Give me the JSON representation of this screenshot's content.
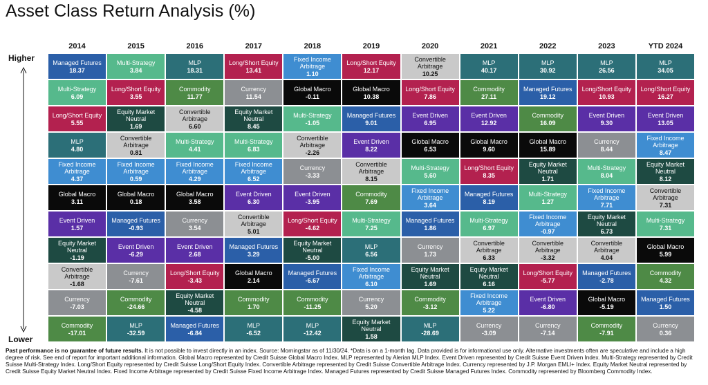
{
  "title": "Asset Class Return Analysis (%)",
  "higher_label": "Higher",
  "lower_label": "Lower",
  "footnote_bold": "Past performance is no guarantee of future results.",
  "footnote_text": " It is not possible to invest directly in an index. Source: Morningstar as of 11/30/24. *Data is on a 1-month lag. Data provided is for informational use only. Alternative investments often are speculative and include a high degree of risk. See end of report for important additional information. Global Macro represented by Credit Suisse Global Macro Index. MLP represented by Alerian MLP Index. Event Driven represented by Credit Suisse Event Driven Index. Multi-Strategy represented by Credit Suisse Multi-Strategy Index. Long/Short Equity represented by Credit Suisse Long/Short Equity Index. Convertible Arbitrage represented by Credit Suisse Convertible Arbitrage Index. Currency represented by J.P. Morgan EMLI+ Index. Equity Market Neutral represented by Credit Suisse Equity Market Neutral Index. Fixed Income Arbitrage represented by Credit Suisse Fixed Income Arbitrage Index. Managed Futures represented by Credit Suisse Managed Futures Index. Commodity represented by Bloomberg Commodity Index.",
  "colors": {
    "Managed Futures": "#2b5fa8",
    "Multi-Strategy": "#56b98c",
    "Long/Short Equity": "#b3214f",
    "MLP": "#2c6f78",
    "Fixed Income Arbitrage": "#3f8dd1",
    "Global Macro": "#0a0a0a",
    "Event Driven": "#5a2fa6",
    "Equity Market Neutral": "#1e4a42",
    "Convertible Arbitrage": "#c9c9c9",
    "Currency": "#8c8f93",
    "Commodity": "#4e8a46"
  },
  "chart_data": {
    "type": "table",
    "title": "Asset Class Return Analysis (%)",
    "columns": [
      "2014",
      "2015",
      "2016",
      "2017",
      "2018",
      "2019",
      "2020",
      "2021",
      "2022",
      "2023",
      "YTD 2024"
    ],
    "rows": [
      [
        {
          "name": "Managed Futures",
          "value": "18.37"
        },
        {
          "name": "Multi-Strategy",
          "value": "3.84"
        },
        {
          "name": "MLP",
          "value": "18.31"
        },
        {
          "name": "Long/Short Equity",
          "value": "13.41"
        },
        {
          "name": "Fixed Income Arbitrage",
          "value": "1.10"
        },
        {
          "name": "Long/Short Equity",
          "value": "12.17"
        },
        {
          "name": "Convertible Arbitrage",
          "value": "10.25"
        },
        {
          "name": "MLP",
          "value": "40.17"
        },
        {
          "name": "MLP",
          "value": "30.92"
        },
        {
          "name": "MLP",
          "value": "26.56"
        },
        {
          "name": "MLP",
          "value": "34.05"
        }
      ],
      [
        {
          "name": "Multi-Strategy",
          "value": "6.09"
        },
        {
          "name": "Long/Short Equity",
          "value": "3.55"
        },
        {
          "name": "Commodity",
          "value": "11.77"
        },
        {
          "name": "Currency",
          "value": "11.54"
        },
        {
          "name": "Global Macro",
          "value": "-0.11"
        },
        {
          "name": "Global Macro",
          "value": "10.38"
        },
        {
          "name": "Long/Short Equity",
          "value": "7.86"
        },
        {
          "name": "Commodity",
          "value": "27.11"
        },
        {
          "name": "Managed Futures",
          "value": "19.12"
        },
        {
          "name": "Long/Short Equity",
          "value": "10.93"
        },
        {
          "name": "Long/Short Equity",
          "value": "16.27"
        }
      ],
      [
        {
          "name": "Long/Short Equity",
          "value": "5.55"
        },
        {
          "name": "Equity Market Neutral",
          "value": "1.69"
        },
        {
          "name": "Convertible Arbitrage",
          "value": "6.60"
        },
        {
          "name": "Equity Market Neutral",
          "value": "8.45"
        },
        {
          "name": "Multi-Strategy",
          "value": "-1.05"
        },
        {
          "name": "Managed Futures",
          "value": "9.01"
        },
        {
          "name": "Event Driven",
          "value": "6.95"
        },
        {
          "name": "Event Driven",
          "value": "12.92"
        },
        {
          "name": "Commodity",
          "value": "16.09"
        },
        {
          "name": "Event Driven",
          "value": "9.30"
        },
        {
          "name": "Event Driven",
          "value": "13.05"
        }
      ],
      [
        {
          "name": "MLP",
          "value": "4.80"
        },
        {
          "name": "Convertible Arbitrage",
          "value": "0.81"
        },
        {
          "name": "Multi-Strategy",
          "value": "4.41"
        },
        {
          "name": "Multi-Strategy",
          "value": "6.83"
        },
        {
          "name": "Convertible Arbitrage",
          "value": "-2.26"
        },
        {
          "name": "Event Driven",
          "value": "8.22"
        },
        {
          "name": "Global Macro",
          "value": "6.53"
        },
        {
          "name": "Global Macro",
          "value": "9.60"
        },
        {
          "name": "Global Macro",
          "value": "15.89"
        },
        {
          "name": "Currency",
          "value": "8.44"
        },
        {
          "name": "Fixed Income Arbitrage",
          "value": "8.47"
        }
      ],
      [
        {
          "name": "Fixed Income Arbitrage",
          "value": "4.37"
        },
        {
          "name": "Fixed Income Arbitrage",
          "value": "0.59"
        },
        {
          "name": "Fixed Income Arbitrage",
          "value": "4.29"
        },
        {
          "name": "Fixed Income Arbitrage",
          "value": "6.52"
        },
        {
          "name": "Currency",
          "value": "-3.33"
        },
        {
          "name": "Convertible Arbitrage",
          "value": "8.15"
        },
        {
          "name": "Multi-Strategy",
          "value": "5.60"
        },
        {
          "name": "Long/Short Equity",
          "value": "8.35"
        },
        {
          "name": "Equity Market Neutral",
          "value": "1.71"
        },
        {
          "name": "Multi-Strategy",
          "value": "8.04"
        },
        {
          "name": "Equity Market Neutral",
          "value": "8.12"
        }
      ],
      [
        {
          "name": "Global Macro",
          "value": "3.11"
        },
        {
          "name": "Global Macro",
          "value": "0.18"
        },
        {
          "name": "Global Macro",
          "value": "3.58"
        },
        {
          "name": "Event Driven",
          "value": "6.30"
        },
        {
          "name": "Event Driven",
          "value": "-3.95"
        },
        {
          "name": "Commodity",
          "value": "7.69"
        },
        {
          "name": "Fixed Income Arbitrage",
          "value": "3.64"
        },
        {
          "name": "Managed Futures",
          "value": "8.19"
        },
        {
          "name": "Multi-Strategy",
          "value": "1.27"
        },
        {
          "name": "Fixed Income Arbitrage",
          "value": "7.71"
        },
        {
          "name": "Convertible Arbitrage",
          "value": "7.31"
        }
      ],
      [
        {
          "name": "Event Driven",
          "value": "1.57"
        },
        {
          "name": "Managed Futures",
          "value": "-0.93"
        },
        {
          "name": "Currency",
          "value": "3.54"
        },
        {
          "name": "Convertible Arbitrage",
          "value": "5.01"
        },
        {
          "name": "Long/Short Equity",
          "value": "-4.62"
        },
        {
          "name": "Multi-Strategy",
          "value": "7.25"
        },
        {
          "name": "Managed Futures",
          "value": "1.86"
        },
        {
          "name": "Multi-Strategy",
          "value": "6.97"
        },
        {
          "name": "Fixed Income Arbitrage",
          "value": "-0.97"
        },
        {
          "name": "Equity Market Neutral",
          "value": "6.73"
        },
        {
          "name": "Multi-Strategy",
          "value": "7.31"
        }
      ],
      [
        {
          "name": "Equity Market Neutral",
          "value": "-1.19"
        },
        {
          "name": "Event Driven",
          "value": "-6.29"
        },
        {
          "name": "Event Driven",
          "value": "2.68"
        },
        {
          "name": "Managed Futures",
          "value": "3.29"
        },
        {
          "name": "Equity Market Neutral",
          "value": "-5.00"
        },
        {
          "name": "MLP",
          "value": "6.56"
        },
        {
          "name": "Currency",
          "value": "1.73"
        },
        {
          "name": "Convertible Arbitrage",
          "value": "6.33"
        },
        {
          "name": "Convertible Arbitrage",
          "value": "-3.32"
        },
        {
          "name": "Convertible Arbitrage",
          "value": "4.04"
        },
        {
          "name": "Global Macro",
          "value": "5.99"
        }
      ],
      [
        {
          "name": "Convertible Arbitrage",
          "value": "-1.68"
        },
        {
          "name": "Currency",
          "value": "-7.61"
        },
        {
          "name": "Long/Short Equity",
          "value": "-3.43"
        },
        {
          "name": "Global Macro",
          "value": "2.14"
        },
        {
          "name": "Managed Futures",
          "value": "-6.67"
        },
        {
          "name": "Fixed Income Arbitrage",
          "value": "6.10"
        },
        {
          "name": "Equity Market Neutral",
          "value": "1.69"
        },
        {
          "name": "Equity Market Neutral",
          "value": "6.16"
        },
        {
          "name": "Long/Short Equity",
          "value": "-5.77"
        },
        {
          "name": "Managed Futures",
          "value": "-2.78"
        },
        {
          "name": "Commodity",
          "value": "4.32"
        }
      ],
      [
        {
          "name": "Currency",
          "value": "-7.03"
        },
        {
          "name": "Commodity",
          "value": "-24.66"
        },
        {
          "name": "Equity Market Neutral",
          "value": "-4.58"
        },
        {
          "name": "Commodity",
          "value": "1.70"
        },
        {
          "name": "Commodity",
          "value": "-11.25"
        },
        {
          "name": "Currency",
          "value": "5.20"
        },
        {
          "name": "Commodity",
          "value": "-3.12"
        },
        {
          "name": "Fixed Income Arbitrage",
          "value": "5.22"
        },
        {
          "name": "Event Driven",
          "value": "-6.80"
        },
        {
          "name": "Global Macro",
          "value": "-5.19"
        },
        {
          "name": "Managed Futures",
          "value": "1.50"
        }
      ],
      [
        {
          "name": "Commodity",
          "value": "-17.01"
        },
        {
          "name": "MLP",
          "value": "-32.59"
        },
        {
          "name": "Managed Futures",
          "value": "-6.84"
        },
        {
          "name": "MLP",
          "value": "-6.52"
        },
        {
          "name": "MLP",
          "value": "-12.42"
        },
        {
          "name": "Equity Market Neutral",
          "value": "1.58"
        },
        {
          "name": "MLP",
          "value": "-28.69"
        },
        {
          "name": "Currency",
          "value": "-3.09"
        },
        {
          "name": "Currency",
          "value": "-7.14"
        },
        {
          "name": "Commodity",
          "value": "-7.91"
        },
        {
          "name": "Currency",
          "value": "0.36"
        }
      ]
    ]
  }
}
